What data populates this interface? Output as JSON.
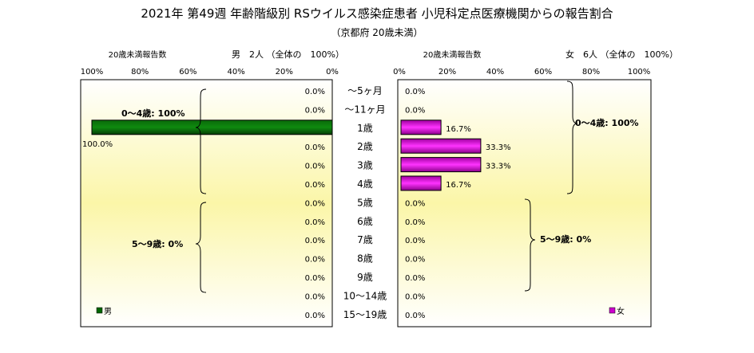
{
  "chart_data": {
    "type": "bar",
    "title": "2021年 第49週 年齢階級別 RSウイルス感染症患者 小児科定点医療機関からの報告割合",
    "subtitle": "（京都府 20歳未満）",
    "categories": [
      "～5ヶ月",
      "～11ヶ月",
      "1歳",
      "2歳",
      "3歳",
      "4歳",
      "5歳",
      "6歳",
      "7歳",
      "8歳",
      "9歳",
      "10～14歳",
      "15～19歳"
    ],
    "xlim": [
      0,
      100
    ],
    "ticks": [
      "0%",
      "20%",
      "40%",
      "60%",
      "80%",
      "100%"
    ],
    "grid": false,
    "left_panel": {
      "axis_label": "20歳未満報告数",
      "summary": "男　2人 （全体の　100%）",
      "legend": "男",
      "color": "#006600",
      "values": [
        0,
        0,
        100,
        0,
        0,
        0,
        0,
        0,
        0,
        0,
        0,
        0,
        0
      ],
      "value_labels": [
        "0.0%",
        "0.0%",
        "100.0%",
        "0.0%",
        "0.0%",
        "0.0%",
        "0.0%",
        "0.0%",
        "0.0%",
        "0.0%",
        "0.0%",
        "0.0%",
        "0.0%"
      ],
      "group_labels": [
        "0～4歳: 100%",
        "5～9歳: 0%"
      ]
    },
    "right_panel": {
      "axis_label": "20歳未満報告数",
      "summary": "女　6人 （全体の　100%）",
      "legend": "女",
      "color": "#cc00cc",
      "values": [
        0,
        0,
        16.7,
        33.3,
        33.3,
        16.7,
        0,
        0,
        0,
        0,
        0,
        0,
        0
      ],
      "value_labels": [
        "0.0%",
        "0.0%",
        "16.7%",
        "33.3%",
        "33.3%",
        "16.7%",
        "0.0%",
        "0.0%",
        "0.0%",
        "0.0%",
        "0.0%",
        "0.0%",
        "0.0%"
      ],
      "group_labels": [
        "0～4歳: 100%",
        "5～9歳: 0%"
      ]
    }
  }
}
